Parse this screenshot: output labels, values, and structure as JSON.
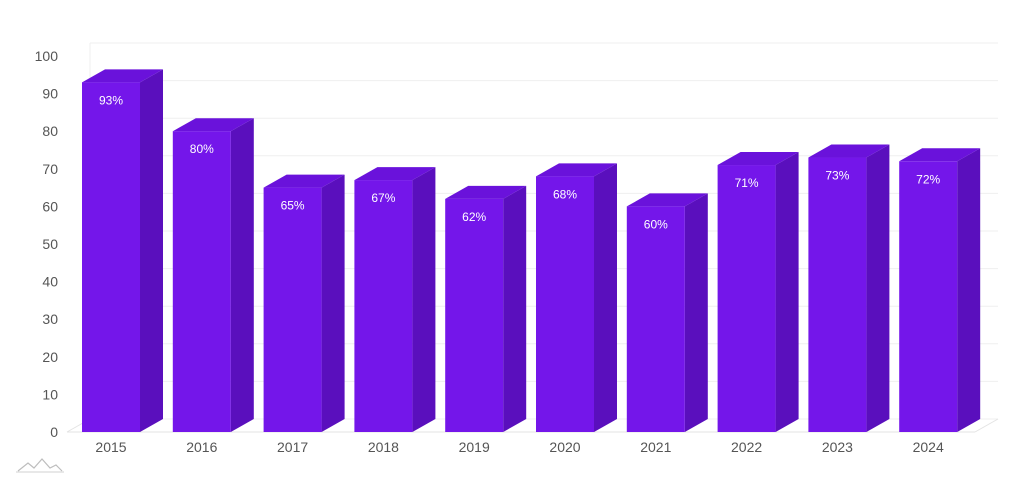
{
  "chart_data": {
    "type": "bar",
    "style": "3d-column",
    "categories": [
      "2015",
      "2016",
      "2017",
      "2018",
      "2019",
      "2020",
      "2021",
      "2022",
      "2023",
      "2024"
    ],
    "values": [
      93,
      80,
      65,
      67,
      62,
      68,
      60,
      71,
      73,
      72
    ],
    "data_labels": [
      "93%",
      "80%",
      "65%",
      "67%",
      "62%",
      "68%",
      "60%",
      "71%",
      "73%",
      "72%"
    ],
    "title": "",
    "xlabel": "",
    "ylabel": "",
    "ylim": [
      0,
      100
    ],
    "yticks": [
      "0",
      "10",
      "20",
      "30",
      "40",
      "50",
      "60",
      "70",
      "80",
      "90",
      "100"
    ],
    "grid": true,
    "legend": "none",
    "colors": {
      "front": "#7416EA",
      "side": "#5A0FBD",
      "top": "#6A12DB",
      "grid": "#EFEFEF",
      "tick_text": "#555555",
      "label_text": "#FFFFFF"
    }
  }
}
